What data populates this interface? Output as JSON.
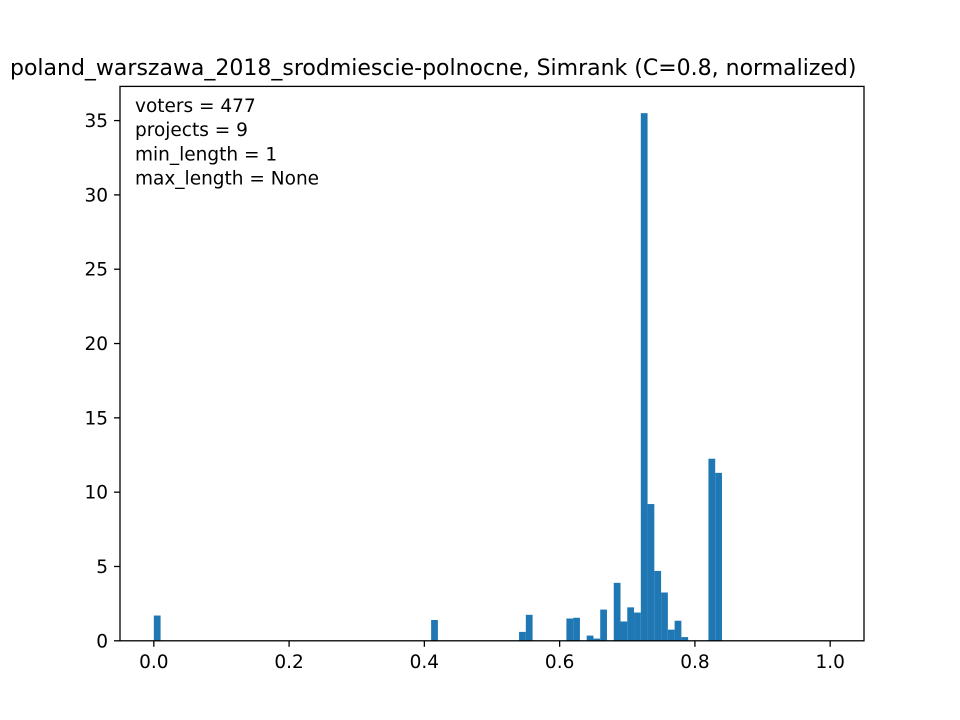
{
  "chart_data": {
    "type": "bar",
    "title": "poland_warszawa_2018_srodmiescie-polnocne, Simrank (C=0.8, normalized)",
    "xlabel": "",
    "ylabel": "",
    "xlim": [
      -0.05,
      1.05
    ],
    "ylim": [
      0,
      37.3
    ],
    "xticks": [
      0.0,
      0.2,
      0.4,
      0.6,
      0.8,
      1.0
    ],
    "xtick_labels": [
      "0.0",
      "0.2",
      "0.4",
      "0.6",
      "0.8",
      "1.0"
    ],
    "yticks": [
      0,
      5,
      10,
      15,
      20,
      25,
      30,
      35
    ],
    "ytick_labels": [
      "0",
      "5",
      "10",
      "15",
      "20",
      "25",
      "30",
      "35"
    ],
    "bin_width": 0.01,
    "bar_color": "#1f77b4",
    "grid": false,
    "annotations": [
      "voters = 477",
      "projects = 9",
      "min_length = 1",
      "max_length = None"
    ],
    "bins": [
      {
        "x": 0.0,
        "value": 1.7
      },
      {
        "x": 0.41,
        "value": 1.4
      },
      {
        "x": 0.54,
        "value": 0.6
      },
      {
        "x": 0.55,
        "value": 1.75
      },
      {
        "x": 0.61,
        "value": 1.5
      },
      {
        "x": 0.62,
        "value": 1.55
      },
      {
        "x": 0.64,
        "value": 0.35
      },
      {
        "x": 0.65,
        "value": 0.15
      },
      {
        "x": 0.66,
        "value": 2.1
      },
      {
        "x": 0.68,
        "value": 3.9
      },
      {
        "x": 0.69,
        "value": 1.3
      },
      {
        "x": 0.7,
        "value": 2.25
      },
      {
        "x": 0.71,
        "value": 1.9
      },
      {
        "x": 0.72,
        "value": 35.5
      },
      {
        "x": 0.73,
        "value": 9.2
      },
      {
        "x": 0.74,
        "value": 4.7
      },
      {
        "x": 0.75,
        "value": 3.25
      },
      {
        "x": 0.76,
        "value": 0.75
      },
      {
        "x": 0.77,
        "value": 1.35
      },
      {
        "x": 0.78,
        "value": 0.25
      },
      {
        "x": 0.82,
        "value": 12.25
      },
      {
        "x": 0.83,
        "value": 11.3
      }
    ]
  }
}
